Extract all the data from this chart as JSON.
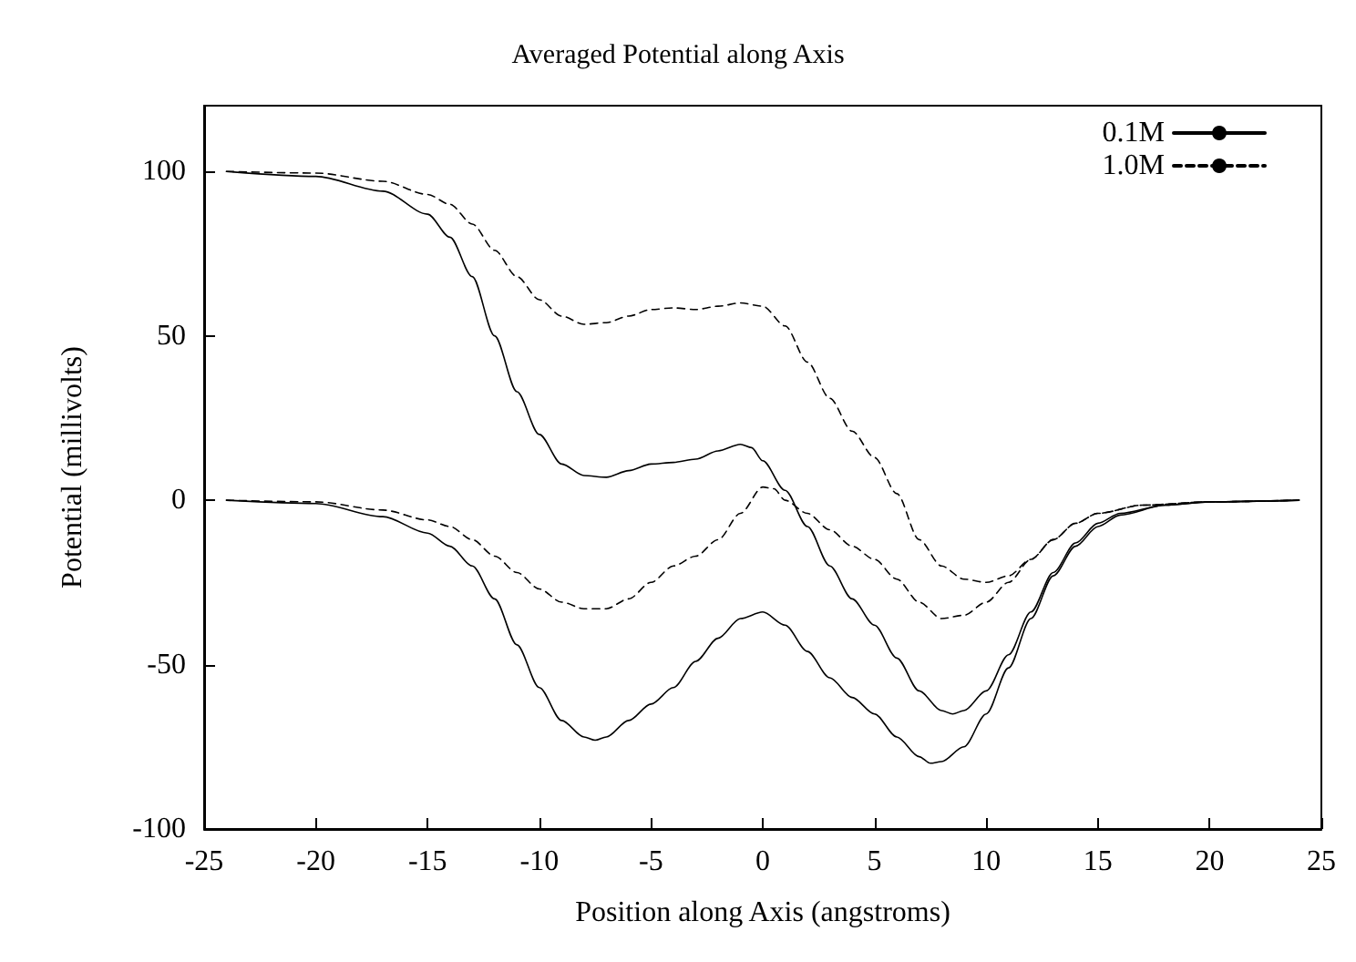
{
  "chart_data": {
    "type": "line",
    "title": "Averaged Potential along Axis",
    "xlabel": "Position along Axis (angstroms)",
    "ylabel": "Potential (millivolts)",
    "xlim": [
      -25,
      25
    ],
    "xticks": [
      -25,
      -20,
      -15,
      -10,
      -5,
      0,
      5,
      10,
      15,
      20,
      25
    ],
    "ylim": [
      -100,
      120
    ],
    "yticks": [
      -100,
      -50,
      0,
      50,
      100
    ],
    "grid": false,
    "legend": "top right",
    "marker": "none",
    "series": [
      {
        "name": "0.1M",
        "color": "#000000",
        "line_style": "solid",
        "x": [
          -24,
          -20,
          -17,
          -15,
          -14,
          -13,
          -12,
          -11,
          -10,
          -9,
          -8,
          -7,
          -6,
          -5,
          -4,
          -3,
          -2,
          -1,
          -0.5,
          0,
          1,
          2,
          3,
          4,
          5,
          6,
          7,
          8,
          8.5,
          9,
          10,
          11,
          12,
          13,
          14,
          15,
          16,
          18,
          20,
          24
        ],
        "values": [
          100,
          98.5,
          94,
          87,
          80,
          68,
          50,
          33,
          20,
          11,
          7.5,
          7,
          9,
          11,
          11.5,
          12.5,
          15,
          17,
          16,
          12,
          3,
          -8,
          -20,
          -30,
          -38,
          -48,
          -58,
          -64,
          -65,
          -64,
          -58,
          -47,
          -34,
          -22,
          -13,
          -7,
          -4,
          -1.5,
          -0.5,
          0
        ]
      },
      {
        "name": "1.0M",
        "color": "#000000",
        "line_style": "dashed",
        "x": [
          -24,
          -20,
          -17,
          -15,
          -14,
          -13,
          -12,
          -11,
          -10,
          -9,
          -8,
          -7,
          -6,
          -5,
          -4,
          -3,
          -2,
          -1,
          0,
          1,
          2,
          3,
          4,
          5,
          6,
          7,
          8,
          9,
          10,
          11,
          12,
          13,
          14,
          15,
          17,
          20,
          24
        ],
        "values": [
          100,
          99.5,
          97,
          93,
          90,
          84,
          76,
          68,
          61,
          56,
          53.5,
          54,
          56,
          58,
          58.5,
          58,
          59,
          60,
          59,
          53,
          42,
          31,
          21,
          13,
          2,
          -12,
          -20,
          -24,
          -25,
          -23,
          -18,
          -12,
          -7,
          -4,
          -1.5,
          -0.5,
          0
        ]
      },
      {
        "color": "#000000",
        "line_style": "solid",
        "x": [
          -24,
          -20,
          -17,
          -15,
          -14,
          -13,
          -12,
          -11,
          -10,
          -9,
          -8,
          -7.5,
          -7,
          -6,
          -5,
          -4,
          -3,
          -2,
          -1,
          0,
          1,
          2,
          3,
          4,
          5,
          6,
          7,
          7.5,
          8,
          9,
          10,
          11,
          12,
          13,
          14,
          15,
          16,
          18,
          20,
          24
        ],
        "values": [
          0,
          -1,
          -5,
          -10,
          -14,
          -20,
          -30,
          -44,
          -57,
          -67,
          -72,
          -73,
          -72,
          -67,
          -62,
          -57,
          -49,
          -42,
          -36,
          -34,
          -38,
          -46,
          -54,
          -60,
          -65,
          -72,
          -78,
          -80,
          -79.5,
          -75,
          -65,
          -51,
          -36,
          -23,
          -14,
          -8,
          -4.5,
          -1.5,
          -0.5,
          0
        ]
      },
      {
        "color": "#000000",
        "line_style": "dashed",
        "x": [
          -24,
          -20,
          -17,
          -15,
          -14,
          -13,
          -12,
          -11,
          -10,
          -9,
          -8,
          -7,
          -6,
          -5,
          -4,
          -3,
          -2,
          -1,
          0,
          0.5,
          1,
          2,
          3,
          4,
          5,
          6,
          7,
          8,
          9,
          10,
          11,
          12,
          13,
          14,
          15,
          17,
          20,
          24
        ],
        "values": [
          0,
          -0.5,
          -3,
          -6,
          -8,
          -12,
          -17,
          -22,
          -27,
          -31,
          -33,
          -33,
          -30,
          -25,
          -20,
          -17,
          -12,
          -4,
          4,
          3.5,
          0,
          -4,
          -9,
          -14,
          -18,
          -24,
          -31,
          -36,
          -35,
          -31,
          -25,
          -18,
          -12,
          -7,
          -4,
          -1.5,
          -0.5,
          0
        ]
      }
    ]
  }
}
